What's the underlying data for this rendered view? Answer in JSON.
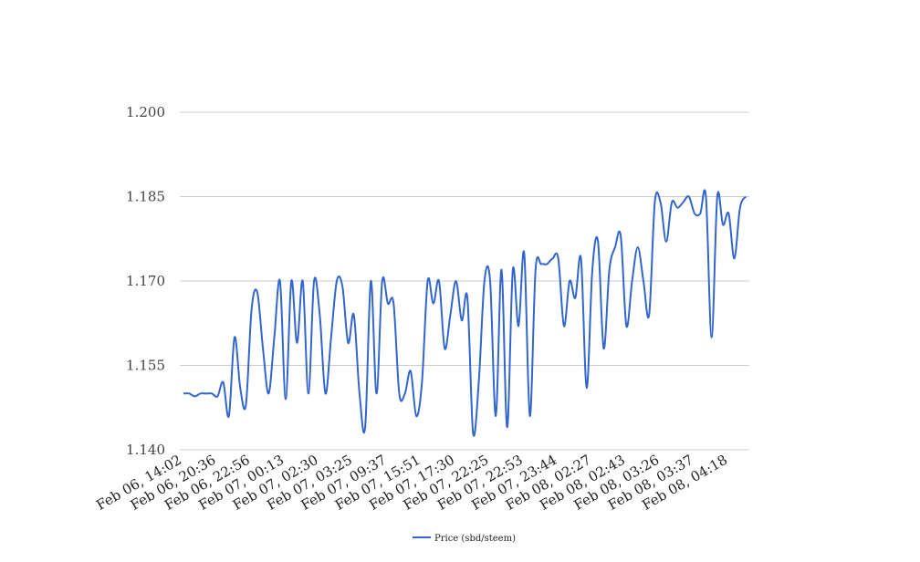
{
  "chart_data": {
    "type": "line",
    "title": "",
    "xlabel": "",
    "ylabel": "",
    "ylim": [
      1.14,
      1.2
    ],
    "y_ticks": [
      "1.140",
      "1.155",
      "1.170",
      "1.185",
      "1.200"
    ],
    "x_tick_labels": [
      "Feb 06, 14:02",
      "Feb 06, 20:36",
      "Feb 06, 22:56",
      "Feb 07, 00:13",
      "Feb 07, 02:30",
      "Feb 07, 03:25",
      "Feb 07, 09:37",
      "Feb 07, 15:51",
      "Feb 07, 17:30",
      "Feb 07, 22:25",
      "Feb 07, 22:53",
      "Feb 07, 23:44",
      "Feb 08, 02:27",
      "Feb 08, 02:43",
      "Feb 08, 03:26",
      "Feb 08, 03:37",
      "Feb 08, 04:18"
    ],
    "grid": true,
    "legend_position": "bottom",
    "series": [
      {
        "name": "Price (sbd/steem)",
        "color": "#3366cc",
        "values": [
          1.15,
          1.15,
          1.1495,
          1.15,
          1.15,
          1.15,
          1.1495,
          1.152,
          1.146,
          1.16,
          1.151,
          1.148,
          1.165,
          1.168,
          1.158,
          1.15,
          1.16,
          1.17,
          1.149,
          1.17,
          1.159,
          1.17,
          1.15,
          1.17,
          1.164,
          1.15,
          1.16,
          1.17,
          1.169,
          1.159,
          1.164,
          1.15,
          1.144,
          1.17,
          1.15,
          1.17,
          1.166,
          1.166,
          1.15,
          1.15,
          1.154,
          1.146,
          1.152,
          1.17,
          1.166,
          1.17,
          1.158,
          1.164,
          1.17,
          1.163,
          1.167,
          1.143,
          1.152,
          1.17,
          1.17,
          1.146,
          1.172,
          1.144,
          1.172,
          1.162,
          1.175,
          1.146,
          1.172,
          1.173,
          1.173,
          1.174,
          1.174,
          1.162,
          1.17,
          1.167,
          1.174,
          1.151,
          1.172,
          1.177,
          1.158,
          1.172,
          1.176,
          1.178,
          1.162,
          1.17,
          1.176,
          1.17,
          1.164,
          1.184,
          1.184,
          1.177,
          1.184,
          1.183,
          1.184,
          1.185,
          1.182,
          1.182,
          1.185,
          1.16,
          1.185,
          1.18,
          1.182,
          1.174,
          1.183,
          1.185
        ]
      }
    ]
  }
}
